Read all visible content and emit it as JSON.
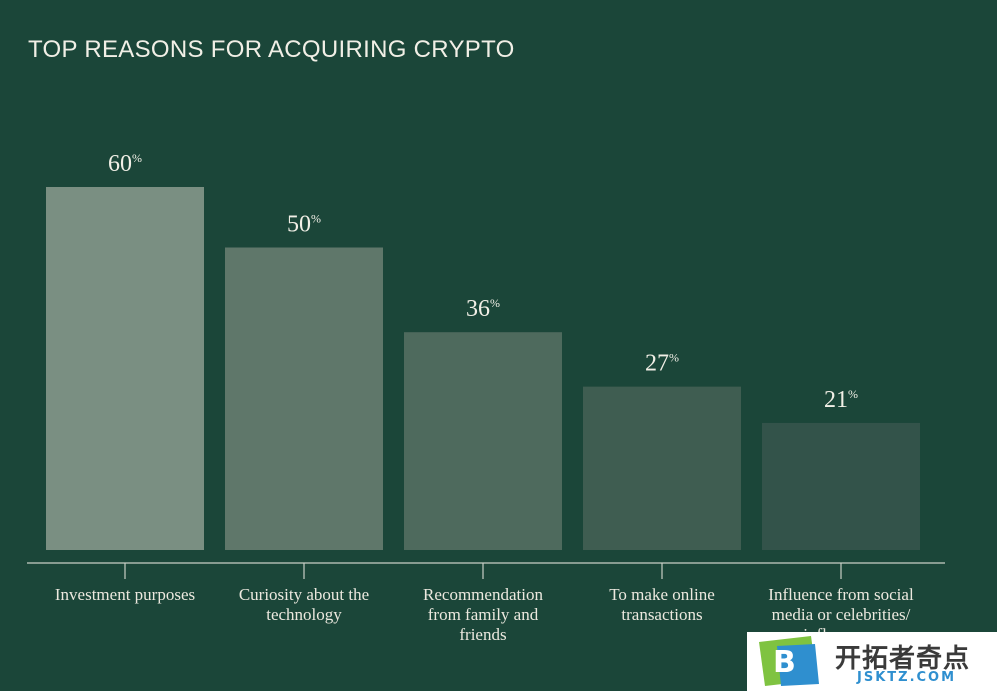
{
  "chart_data": {
    "type": "bar",
    "title": "TOP REASONS FOR ACQUIRING CRYPTO",
    "unit": "%",
    "categories": [
      [
        "Investment purposes"
      ],
      [
        "Curiosity about the",
        "technology"
      ],
      [
        "Recommendation",
        "from family and",
        "friends"
      ],
      [
        "To make online",
        "transactions"
      ],
      [
        "Influence from social",
        "media or celebrities/",
        "influencers"
      ]
    ],
    "values": [
      60,
      50,
      36,
      27,
      21
    ],
    "ylim": [
      0,
      60
    ],
    "bar_colors": [
      "#7a8f82",
      "#5f776a",
      "#4e6a5d",
      "#3f5d51",
      "#33534a"
    ],
    "grid": false
  },
  "watermark": {
    "logo_letter": "B",
    "brand_cn": "开拓者奇点",
    "brand_url": "JSKTZ.COM"
  }
}
